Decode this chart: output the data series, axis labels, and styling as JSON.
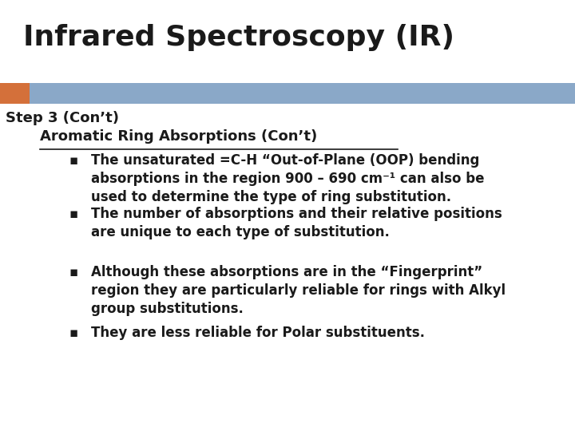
{
  "title": "Infrared Spectroscopy (IR)",
  "title_fontsize": 26,
  "title_color": "#1a1a1a",
  "bg_color": "#ffffff",
  "header_bar_color": "#8aa8c8",
  "header_bar_orange": "#d4703a",
  "step_label": "Step 3 (Con’t)",
  "step_fontsize": 13,
  "section_label": "Aromatic Ring Absorptions (Con’t)",
  "section_fontsize": 13,
  "bullets": [
    "The unsaturated =C-H “Out-of-Plane (OOP) bending\nabsorptions in the region 900 – 690 cm⁻¹ can also be\nused to determine the type of ring substitution.",
    "The number of absorptions and their relative positions\nare unique to each type of substitution.",
    "Although these absorptions are in the “Fingerprint”\nregion they are particularly reliable for rings with Alkyl\ngroup substitutions.",
    "They are less reliable for Polar substituents."
  ],
  "bullet_fontsize": 12,
  "bullet_color": "#1a1a1a",
  "bullet_symbol": "▪",
  "indent_section": 0.07,
  "indent_bullet": 0.12
}
